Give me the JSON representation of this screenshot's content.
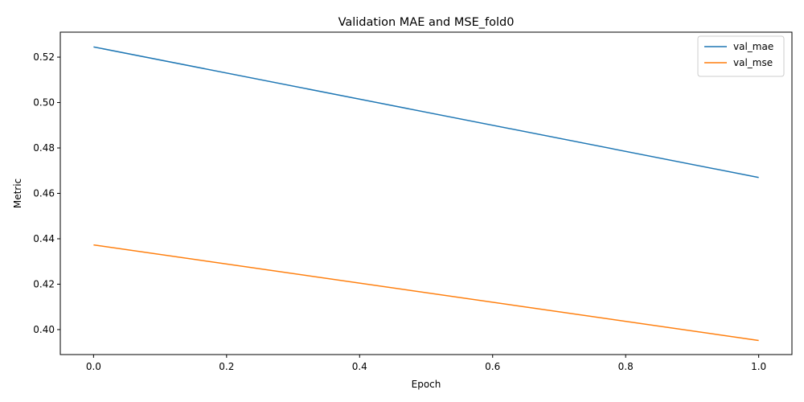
{
  "chart_data": {
    "type": "line",
    "title": "Validation MAE and MSE_fold0",
    "xlabel": "Epoch",
    "ylabel": "Metric",
    "x": [
      0,
      1
    ],
    "xlim": [
      -0.05,
      1.05
    ],
    "ylim": [
      0.389,
      0.531
    ],
    "xticks": [
      0.0,
      0.2,
      0.4,
      0.6,
      0.8,
      1.0
    ],
    "xtick_labels": [
      "0.0",
      "0.2",
      "0.4",
      "0.6",
      "0.8",
      "1.0"
    ],
    "yticks": [
      0.4,
      0.42,
      0.44,
      0.46,
      0.48,
      0.5,
      0.52
    ],
    "ytick_labels": [
      "0.40",
      "0.42",
      "0.44",
      "0.46",
      "0.48",
      "0.50",
      "0.52"
    ],
    "grid": false,
    "legend": "top-right",
    "series": [
      {
        "name": "val_mae",
        "values": [
          0.5245,
          0.467
        ],
        "color": "#1f77b4"
      },
      {
        "name": "val_mse",
        "values": [
          0.4373,
          0.3952
        ],
        "color": "#ff7f0e"
      }
    ]
  }
}
